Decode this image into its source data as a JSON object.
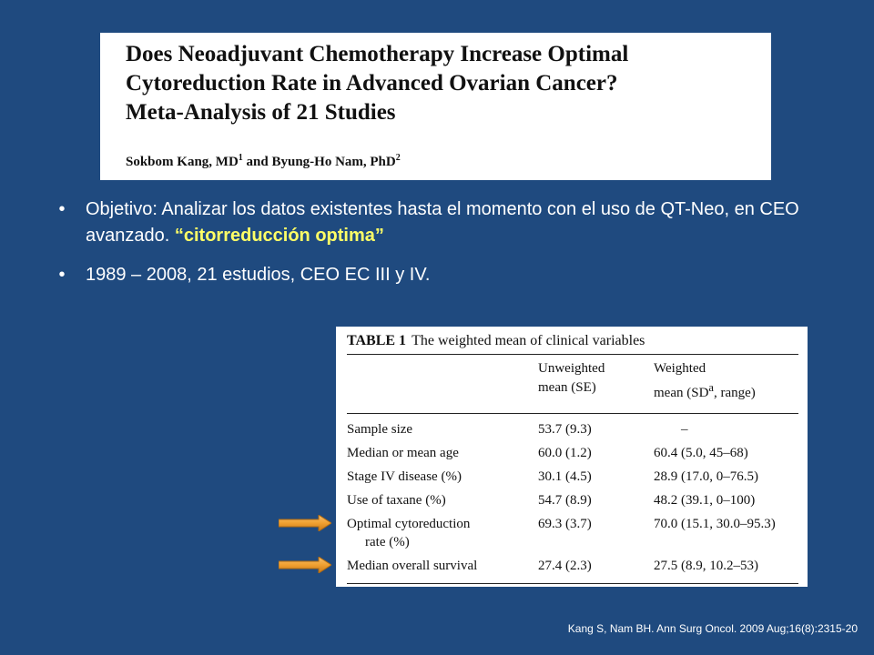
{
  "paper": {
    "title_line1": "Does Neoadjuvant Chemotherapy Increase Optimal",
    "title_line2": "Cytoreduction Rate in Advanced Ovarian Cancer?",
    "title_line3": "Meta-Analysis of 21 Studies",
    "author1": "Sokbom Kang, MD",
    "author1_sup": "1",
    "author_joiner": " and ",
    "author2": "Byung-Ho Nam, PhD",
    "author2_sup": "2"
  },
  "bullets": {
    "b1_text": "Objetivo: Analizar los datos existentes hasta el momento con el uso de QT-Neo, en CEO avanzado. ",
    "b1_highlight": "“citorreducción optima”",
    "b2_text": "1989 – 2008, 21 estudios, CEO EC III y IV.",
    "marker": "•"
  },
  "table": {
    "label": "TABLE 1",
    "caption": "The weighted mean of clinical variables",
    "col2_line1": "Unweighted",
    "col2_line2": "mean (SE)",
    "col3_line1": "Weighted",
    "col3_line2": "mean (SD",
    "col3_sup": "a",
    "col3_tail": ", range)",
    "rows": [
      {
        "variable": "Sample size",
        "unweighted": "53.7 (9.3)",
        "weighted": "–"
      },
      {
        "variable": "Median or mean age",
        "unweighted": "60.0 (1.2)",
        "weighted": "60.4 (5.0, 45–68)"
      },
      {
        "variable": "Stage IV disease (%)",
        "unweighted": "30.1 (4.5)",
        "weighted": "28.9 (17.0, 0–76.5)"
      },
      {
        "variable": "Use of taxane (%)",
        "unweighted": "54.7 (8.9)",
        "weighted": "48.2 (39.1, 0–100)"
      },
      {
        "variable": "Optimal cytoreduction",
        "variable_line2": "rate (%)",
        "unweighted": "69.3 (3.7)",
        "weighted": "70.0 (15.1, 30.0–95.3)"
      },
      {
        "variable": "Median overall survival",
        "unweighted": "27.4 (2.3)",
        "weighted": "27.5 (8.9, 10.2–53)"
      }
    ]
  },
  "colors": {
    "background": "#1f4a7f",
    "highlight": "#ffff66",
    "arrow": "#f0a030"
  },
  "footer": {
    "citation": "Kang S, Nam BH. Ann Surg Oncol. 2009 Aug;16(8):2315-20"
  }
}
